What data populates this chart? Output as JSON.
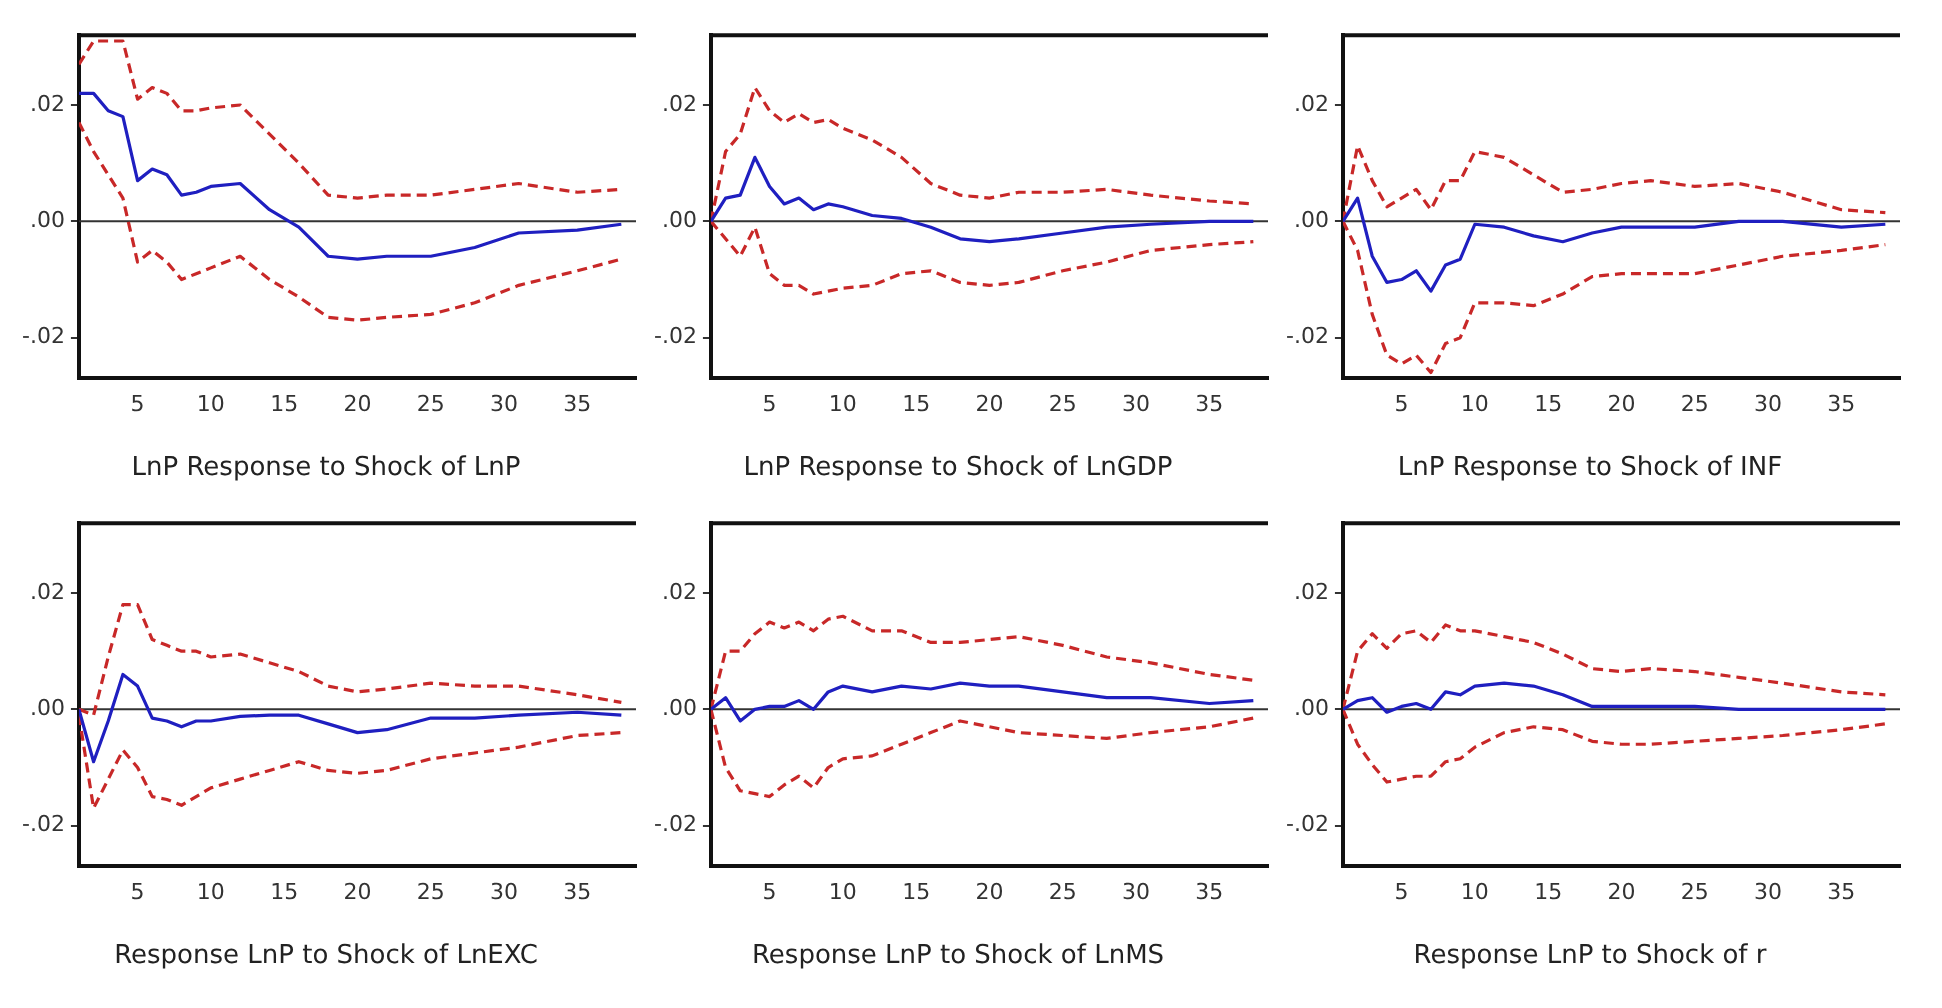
{
  "chart_data": [
    {
      "type": "line",
      "title": "LnP Response to Shock of LnP",
      "x": [
        1,
        2,
        3,
        4,
        5,
        6,
        7,
        8,
        9,
        10,
        12,
        14,
        16,
        18,
        20,
        22,
        25,
        28,
        31,
        35,
        38
      ],
      "xlim": [
        1,
        39
      ],
      "xticks": [
        5,
        10,
        15,
        20,
        25,
        30,
        35
      ],
      "ylim": [
        -0.027,
        0.032
      ],
      "yticks": [
        {
          "value": -0.02,
          "label": "-.02"
        },
        {
          "value": 0,
          "label": ".00"
        },
        {
          "value": 0.02,
          "label": ".02"
        }
      ],
      "grid": false,
      "legend": false,
      "marker": "none",
      "ref_lines": [
        {
          "axis": "y",
          "value": 0,
          "color": "#333333"
        }
      ],
      "series": [
        {
          "color": "#1f1fc0",
          "line_style": "solid",
          "values": [
            0.022,
            0.022,
            0.019,
            0.018,
            0.007,
            0.009,
            0.008,
            0.0045,
            0.005,
            0.006,
            0.0065,
            0.002,
            -0.001,
            -0.006,
            -0.0065,
            -0.006,
            -0.006,
            -0.0045,
            -0.002,
            -0.0015,
            -0.0005
          ]
        },
        {
          "color": "#c82828",
          "line_style": "dashed",
          "values": [
            0.027,
            0.031,
            0.031,
            0.031,
            0.021,
            0.023,
            0.022,
            0.019,
            0.019,
            0.0195,
            0.02,
            0.015,
            0.01,
            0.0045,
            0.004,
            0.0045,
            0.0045,
            0.0055,
            0.0065,
            0.005,
            0.0055
          ]
        },
        {
          "color": "#c82828",
          "line_style": "dashed",
          "values": [
            0.017,
            0.012,
            0.008,
            0.004,
            -0.007,
            -0.005,
            -0.007,
            -0.01,
            -0.009,
            -0.008,
            -0.006,
            -0.01,
            -0.013,
            -0.0165,
            -0.017,
            -0.0165,
            -0.016,
            -0.014,
            -0.011,
            -0.0085,
            -0.0065
          ]
        }
      ]
    },
    {
      "type": "line",
      "title": "LnP Response to Shock of LnGDP",
      "x": [
        1,
        2,
        3,
        4,
        5,
        6,
        7,
        8,
        9,
        10,
        12,
        14,
        16,
        18,
        20,
        22,
        25,
        28,
        31,
        35,
        38
      ],
      "xlim": [
        1,
        39
      ],
      "xticks": [
        5,
        10,
        15,
        20,
        25,
        30,
        35
      ],
      "ylim": [
        -0.027,
        0.032
      ],
      "yticks": [
        {
          "value": -0.02,
          "label": "-.02"
        },
        {
          "value": 0,
          "label": ".00"
        },
        {
          "value": 0.02,
          "label": ".02"
        }
      ],
      "grid": false,
      "legend": false,
      "marker": "none",
      "ref_lines": [
        {
          "axis": "y",
          "value": 0,
          "color": "#333333"
        }
      ],
      "series": [
        {
          "color": "#1f1fc0",
          "line_style": "solid",
          "values": [
            0,
            0.004,
            0.0045,
            0.011,
            0.006,
            0.003,
            0.004,
            0.002,
            0.003,
            0.0025,
            0.001,
            0.0005,
            -0.001,
            -0.003,
            -0.0035,
            -0.003,
            -0.002,
            -0.001,
            -0.0005,
            0,
            0
          ]
        },
        {
          "color": "#c82828",
          "line_style": "dashed",
          "values": [
            0,
            0.012,
            0.015,
            0.023,
            0.019,
            0.017,
            0.0185,
            0.017,
            0.0175,
            0.016,
            0.014,
            0.011,
            0.0065,
            0.0045,
            0.004,
            0.005,
            0.005,
            0.0055,
            0.0045,
            0.0035,
            0.003
          ]
        },
        {
          "color": "#c82828",
          "line_style": "dashed",
          "values": [
            0,
            -0.003,
            -0.006,
            -0.001,
            -0.009,
            -0.011,
            -0.011,
            -0.0125,
            -0.012,
            -0.0115,
            -0.011,
            -0.009,
            -0.0085,
            -0.0105,
            -0.011,
            -0.0105,
            -0.0085,
            -0.007,
            -0.005,
            -0.004,
            -0.0035
          ]
        }
      ]
    },
    {
      "type": "line",
      "title": "LnP Response to Shock of INF",
      "x": [
        1,
        2,
        3,
        4,
        5,
        6,
        7,
        8,
        9,
        10,
        12,
        14,
        16,
        18,
        20,
        22,
        25,
        28,
        31,
        35,
        38
      ],
      "xlim": [
        1,
        39
      ],
      "xticks": [
        5,
        10,
        15,
        20,
        25,
        30,
        35
      ],
      "ylim": [
        -0.027,
        0.032
      ],
      "yticks": [
        {
          "value": -0.02,
          "label": "-.02"
        },
        {
          "value": 0,
          "label": ".00"
        },
        {
          "value": 0.02,
          "label": ".02"
        }
      ],
      "grid": false,
      "legend": false,
      "marker": "none",
      "ref_lines": [
        {
          "axis": "y",
          "value": 0,
          "color": "#333333"
        }
      ],
      "series": [
        {
          "color": "#1f1fc0",
          "line_style": "solid",
          "values": [
            0,
            0.004,
            -0.006,
            -0.0105,
            -0.01,
            -0.0085,
            -0.012,
            -0.0075,
            -0.0065,
            -0.0005,
            -0.001,
            -0.0025,
            -0.0035,
            -0.002,
            -0.001,
            -0.001,
            -0.001,
            0,
            0,
            -0.001,
            -0.0005
          ]
        },
        {
          "color": "#c82828",
          "line_style": "dashed",
          "values": [
            0,
            0.013,
            0.007,
            0.0025,
            0.004,
            0.0055,
            0.002,
            0.007,
            0.007,
            0.012,
            0.011,
            0.008,
            0.005,
            0.0055,
            0.0065,
            0.007,
            0.006,
            0.0065,
            0.005,
            0.002,
            0.0015
          ]
        },
        {
          "color": "#c82828",
          "line_style": "dashed",
          "values": [
            0,
            -0.005,
            -0.016,
            -0.023,
            -0.0245,
            -0.023,
            -0.026,
            -0.021,
            -0.02,
            -0.014,
            -0.014,
            -0.0145,
            -0.0125,
            -0.0095,
            -0.009,
            -0.009,
            -0.009,
            -0.0075,
            -0.006,
            -0.005,
            -0.004
          ]
        }
      ]
    },
    {
      "type": "line",
      "title": "Response LnP to Shock of LnEXC",
      "x": [
        1,
        2,
        3,
        4,
        5,
        6,
        7,
        8,
        9,
        10,
        12,
        14,
        16,
        18,
        20,
        22,
        25,
        28,
        31,
        35,
        38
      ],
      "xlim": [
        1,
        39
      ],
      "xticks": [
        5,
        10,
        15,
        20,
        25,
        30,
        35
      ],
      "ylim": [
        -0.027,
        0.032
      ],
      "yticks": [
        {
          "value": -0.02,
          "label": "-.02"
        },
        {
          "value": 0,
          "label": ".00"
        },
        {
          "value": 0.02,
          "label": ".02"
        }
      ],
      "grid": false,
      "legend": false,
      "marker": "none",
      "ref_lines": [
        {
          "axis": "y",
          "value": 0,
          "color": "#333333"
        }
      ],
      "series": [
        {
          "color": "#1f1fc0",
          "line_style": "solid",
          "values": [
            0,
            -0.009,
            -0.002,
            0.006,
            0.004,
            -0.0015,
            -0.002,
            -0.003,
            -0.002,
            -0.002,
            -0.0012,
            -0.001,
            -0.001,
            -0.0025,
            -0.004,
            -0.0035,
            -0.0015,
            -0.0015,
            -0.001,
            -0.0005,
            -0.001
          ]
        },
        {
          "color": "#c82828",
          "line_style": "dashed",
          "values": [
            0,
            -0.001,
            0.009,
            0.018,
            0.018,
            0.012,
            0.011,
            0.01,
            0.01,
            0.009,
            0.0095,
            0.008,
            0.0065,
            0.004,
            0.003,
            0.0035,
            0.0045,
            0.004,
            0.004,
            0.0025,
            0.0012
          ]
        },
        {
          "color": "#c82828",
          "line_style": "dashed",
          "values": [
            -0.001,
            -0.017,
            -0.012,
            -0.007,
            -0.01,
            -0.015,
            -0.0155,
            -0.0165,
            -0.015,
            -0.0135,
            -0.012,
            -0.0105,
            -0.009,
            -0.0105,
            -0.011,
            -0.0105,
            -0.0085,
            -0.0075,
            -0.0065,
            -0.0045,
            -0.004
          ]
        }
      ]
    },
    {
      "type": "line",
      "title": "Response LnP to Shock of LnMS",
      "x": [
        1,
        2,
        3,
        4,
        5,
        6,
        7,
        8,
        9,
        10,
        12,
        14,
        16,
        18,
        20,
        22,
        25,
        28,
        31,
        35,
        38
      ],
      "xlim": [
        1,
        39
      ],
      "xticks": [
        5,
        10,
        15,
        20,
        25,
        30,
        35
      ],
      "ylim": [
        -0.027,
        0.032
      ],
      "yticks": [
        {
          "value": -0.02,
          "label": "-.02"
        },
        {
          "value": 0,
          "label": ".00"
        },
        {
          "value": 0.02,
          "label": ".02"
        }
      ],
      "grid": false,
      "legend": false,
      "marker": "none",
      "ref_lines": [
        {
          "axis": "y",
          "value": 0,
          "color": "#333333"
        }
      ],
      "series": [
        {
          "color": "#1f1fc0",
          "line_style": "solid",
          "values": [
            0,
            0.002,
            -0.002,
            0,
            0.0005,
            0.0005,
            0.0015,
            0,
            0.003,
            0.004,
            0.003,
            0.004,
            0.0035,
            0.0045,
            0.004,
            0.004,
            0.003,
            0.002,
            0.002,
            0.001,
            0.0015
          ]
        },
        {
          "color": "#c82828",
          "line_style": "dashed",
          "values": [
            0,
            0.01,
            0.01,
            0.013,
            0.015,
            0.014,
            0.015,
            0.0135,
            0.0155,
            0.016,
            0.0135,
            0.0135,
            0.0115,
            0.0115,
            0.012,
            0.0125,
            0.011,
            0.009,
            0.008,
            0.006,
            0.005
          ]
        },
        {
          "color": "#c82828",
          "line_style": "dashed",
          "values": [
            0,
            -0.01,
            -0.014,
            -0.0145,
            -0.015,
            -0.013,
            -0.0115,
            -0.0135,
            -0.01,
            -0.0085,
            -0.008,
            -0.006,
            -0.004,
            -0.002,
            -0.003,
            -0.004,
            -0.0045,
            -0.005,
            -0.004,
            -0.003,
            -0.0015
          ]
        }
      ]
    },
    {
      "type": "line",
      "title": "Response LnP to Shock of r",
      "x": [
        1,
        2,
        3,
        4,
        5,
        6,
        7,
        8,
        9,
        10,
        12,
        14,
        16,
        18,
        20,
        22,
        25,
        28,
        31,
        35,
        38
      ],
      "xlim": [
        1,
        39
      ],
      "xticks": [
        5,
        10,
        15,
        20,
        25,
        30,
        35
      ],
      "ylim": [
        -0.027,
        0.032
      ],
      "yticks": [
        {
          "value": -0.02,
          "label": "-.02"
        },
        {
          "value": 0,
          "label": ".00"
        },
        {
          "value": 0.02,
          "label": ".02"
        }
      ],
      "grid": false,
      "legend": false,
      "marker": "none",
      "ref_lines": [
        {
          "axis": "y",
          "value": 0,
          "color": "#333333"
        }
      ],
      "series": [
        {
          "color": "#1f1fc0",
          "line_style": "solid",
          "values": [
            0,
            0.0015,
            0.002,
            -0.0005,
            0.0005,
            0.001,
            0,
            0.003,
            0.0025,
            0.004,
            0.0045,
            0.004,
            0.0025,
            0.0005,
            0.0005,
            0.0005,
            0.0005,
            0,
            0,
            0,
            0
          ]
        },
        {
          "color": "#c82828",
          "line_style": "dashed",
          "values": [
            0,
            0.01,
            0.013,
            0.0105,
            0.013,
            0.0135,
            0.0115,
            0.0145,
            0.0135,
            0.0135,
            0.0125,
            0.0115,
            0.0095,
            0.007,
            0.0065,
            0.007,
            0.0065,
            0.0055,
            0.0045,
            0.003,
            0.0025
          ]
        },
        {
          "color": "#c82828",
          "line_style": "dashed",
          "values": [
            0,
            -0.006,
            -0.0095,
            -0.0125,
            -0.012,
            -0.0115,
            -0.0115,
            -0.009,
            -0.0085,
            -0.0065,
            -0.004,
            -0.003,
            -0.0035,
            -0.0055,
            -0.006,
            -0.006,
            -0.0055,
            -0.005,
            -0.0045,
            -0.0035,
            -0.0025
          ]
        }
      ]
    }
  ]
}
